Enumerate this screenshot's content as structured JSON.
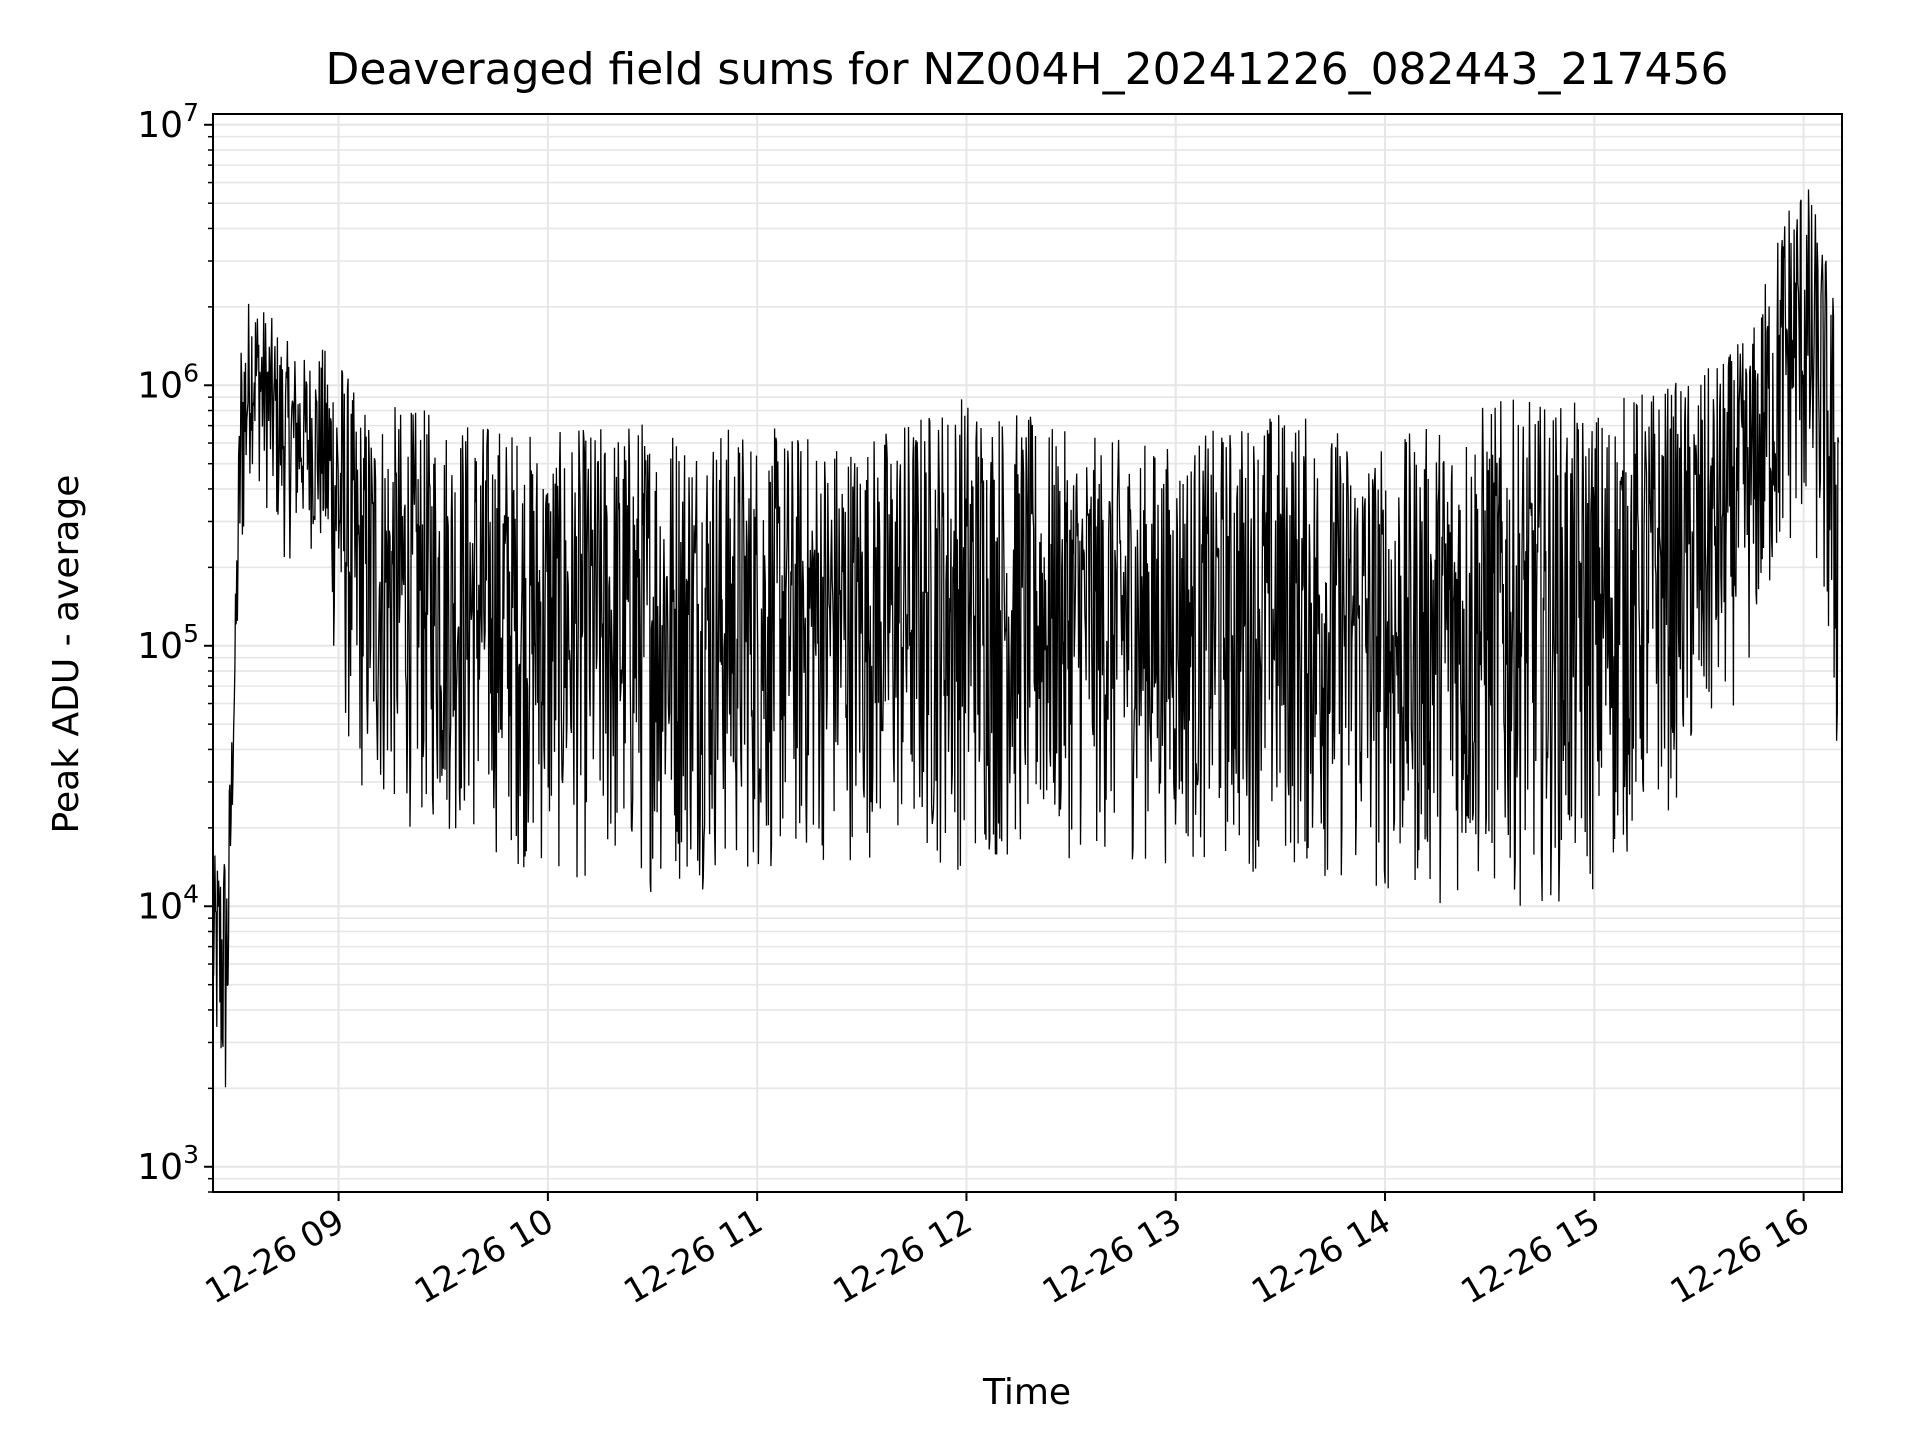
{
  "chart_data": {
    "type": "line",
    "title": "Deaveraged field sums for NZ004H_20241226_082443_217456",
    "xlabel": "Time",
    "ylabel": "Peak ADU - average",
    "yscale": "log",
    "ylim": [
      800,
      11000000
    ],
    "xlim": [
      "12-26 08:24",
      "12-26 16:11"
    ],
    "grid": true,
    "line_color": "#000000",
    "x_ticks": [
      {
        "value": "12-26 09:00",
        "label": "12-26 09"
      },
      {
        "value": "12-26 10:00",
        "label": "12-26 10"
      },
      {
        "value": "12-26 11:00",
        "label": "12-26 11"
      },
      {
        "value": "12-26 12:00",
        "label": "12-26 12"
      },
      {
        "value": "12-26 13:00",
        "label": "12-26 13"
      },
      {
        "value": "12-26 14:00",
        "label": "12-26 14"
      },
      {
        "value": "12-26 15:00",
        "label": "12-26 15"
      },
      {
        "value": "12-26 16:00",
        "label": "12-26 16"
      }
    ],
    "y_ticks": [
      {
        "value": 1000,
        "base": "10",
        "exp": "3"
      },
      {
        "value": 10000,
        "base": "10",
        "exp": "4"
      },
      {
        "value": 100000,
        "base": "10",
        "exp": "5"
      },
      {
        "value": 1000000,
        "base": "10",
        "exp": "6"
      },
      {
        "value": 10000000,
        "base": "10",
        "exp": "7"
      }
    ],
    "series": [
      {
        "values_note": "envelope of a dense noisy signal, [time, low, high]",
        "points": [
          [
            "12-26 08:24",
            3000,
            15000
          ],
          [
            "12-26 08:26",
            1500,
            18000
          ],
          [
            "12-26 08:28",
            1200,
            20000
          ],
          [
            "12-26 08:30",
            40000,
            80000
          ],
          [
            "12-26 08:32",
            150000,
            1800000
          ],
          [
            "12-26 08:35",
            500000,
            2400000
          ],
          [
            "12-26 08:40",
            300000,
            1900000
          ],
          [
            "12-26 08:45",
            200000,
            1500000
          ],
          [
            "12-26 08:50",
            250000,
            1300000
          ],
          [
            "12-26 08:55",
            200000,
            1400000
          ],
          [
            "12-26 09:00",
            60000,
            1500000
          ],
          [
            "12-26 09:05",
            25000,
            900000
          ],
          [
            "12-26 09:15",
            20000,
            850000
          ],
          [
            "12-26 09:30",
            18000,
            800000
          ],
          [
            "12-26 09:45",
            15000,
            750000
          ],
          [
            "12-26 10:00",
            12000,
            650000
          ],
          [
            "12-26 10:30",
            11000,
            800000
          ],
          [
            "12-26 11:00",
            12000,
            700000
          ],
          [
            "12-26 11:30",
            15000,
            650000
          ],
          [
            "12-26 12:00",
            13000,
            1000000
          ],
          [
            "12-26 12:30",
            15000,
            650000
          ],
          [
            "12-26 13:00",
            14000,
            600000
          ],
          [
            "12-26 13:30",
            13000,
            850000
          ],
          [
            "12-26 14:00",
            10000,
            600000
          ],
          [
            "12-26 14:30",
            10000,
            900000
          ],
          [
            "12-26 15:00",
            10000,
            850000
          ],
          [
            "12-26 15:15",
            18000,
            1000000
          ],
          [
            "12-26 15:30",
            30000,
            1100000
          ],
          [
            "12-26 15:45",
            80000,
            1600000
          ],
          [
            "12-26 15:55",
            200000,
            5500000
          ],
          [
            "12-26 16:00",
            250000,
            7000000
          ],
          [
            "12-26 16:05",
            150000,
            4000000
          ],
          [
            "12-26 16:10",
            20000,
            2000000
          ]
        ]
      }
    ]
  }
}
